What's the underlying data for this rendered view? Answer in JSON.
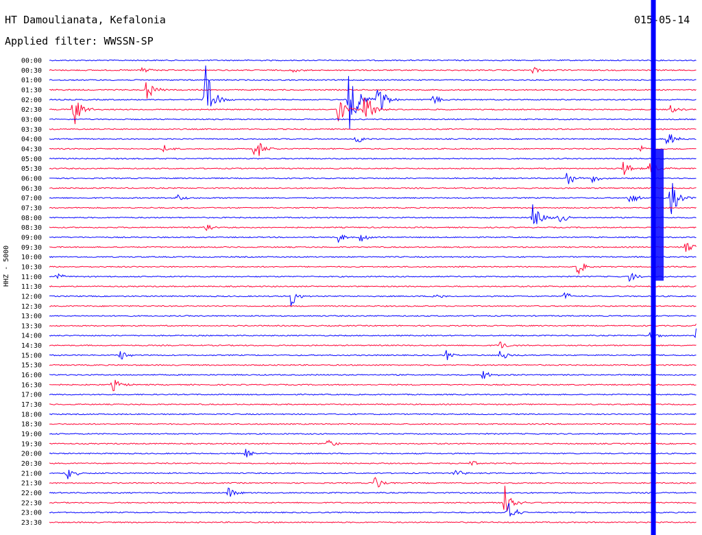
{
  "header": {
    "station": "HT Damoulianata, Kefalonia",
    "filter": "Applied filter: WWSSN-SP",
    "date": "015-05-14"
  },
  "channel_label": "HHZ - 5000",
  "colors": {
    "trace_a": "#0000ff",
    "trace_b": "#ff0033",
    "background": "#ffffff",
    "text": "#000000"
  },
  "chart_data": {
    "type": "line",
    "title": "HT Damoulianata, Kefalonia",
    "subtitle": "Applied filter: WWSSN-SP",
    "ylabel": "HHZ - 5000",
    "xlabel": "",
    "grid": false,
    "legend": "none",
    "trace_duration_minutes": 30,
    "rows": [
      "00:00",
      "00:30",
      "01:00",
      "01:30",
      "02:00",
      "02:30",
      "03:00",
      "03:30",
      "04:00",
      "04:30",
      "05:00",
      "05:30",
      "06:00",
      "06:30",
      "07:00",
      "07:30",
      "08:00",
      "08:30",
      "09:00",
      "09:30",
      "10:00",
      "10:30",
      "11:00",
      "11:30",
      "12:00",
      "12:30",
      "13:00",
      "13:30",
      "14:00",
      "14:30",
      "15:00",
      "15:30",
      "16:00",
      "16:30",
      "17:00",
      "17:30",
      "18:00",
      "18:30",
      "19:00",
      "19:30",
      "20:00",
      "20:30",
      "21:00",
      "21:30",
      "22:00",
      "22:30",
      "23:00",
      "23:30"
    ],
    "events": [
      {
        "row": "00:30",
        "minute": 4.2,
        "amplitude": 8
      },
      {
        "row": "00:30",
        "minute": 11.2,
        "amplitude": 5
      },
      {
        "row": "00:30",
        "minute": 22.4,
        "amplitude": 6
      },
      {
        "row": "01:30",
        "minute": 4.5,
        "amplitude": 16
      },
      {
        "row": "02:00",
        "minute": 7.2,
        "amplitude": 60
      },
      {
        "row": "02:00",
        "minute": 13.9,
        "amplitude": 65
      },
      {
        "row": "02:00",
        "minute": 15.2,
        "amplitude": 30
      },
      {
        "row": "02:00",
        "minute": 17.8,
        "amplitude": 8
      },
      {
        "row": "02:30",
        "minute": 1.1,
        "amplitude": 32
      },
      {
        "row": "02:30",
        "minute": 13.4,
        "amplitude": 25
      },
      {
        "row": "02:30",
        "minute": 14.6,
        "amplitude": 35
      },
      {
        "row": "02:30",
        "minute": 28.8,
        "amplitude": 7
      },
      {
        "row": "04:00",
        "minute": 14.2,
        "amplitude": 8
      },
      {
        "row": "04:00",
        "minute": 28.6,
        "amplitude": 16
      },
      {
        "row": "04:30",
        "minute": 5.3,
        "amplitude": 6
      },
      {
        "row": "04:30",
        "minute": 9.5,
        "amplitude": 22
      },
      {
        "row": "04:30",
        "minute": 27.4,
        "amplitude": 5
      },
      {
        "row": "05:30",
        "minute": 26.6,
        "amplitude": 14
      },
      {
        "row": "05:30",
        "minute": 27.8,
        "amplitude": 12
      },
      {
        "row": "06:00",
        "minute": 24.0,
        "amplitude": 12
      },
      {
        "row": "06:00",
        "minute": 25.2,
        "amplitude": 8
      },
      {
        "row": "07:00",
        "minute": 5.9,
        "amplitude": 8
      },
      {
        "row": "07:00",
        "minute": 26.9,
        "amplitude": 10
      },
      {
        "row": "07:00",
        "minute": 28.8,
        "amplitude": 30
      },
      {
        "row": "08:00",
        "minute": 22.4,
        "amplitude": 28
      },
      {
        "row": "08:00",
        "minute": 23.6,
        "amplitude": 12
      },
      {
        "row": "08:30",
        "minute": 7.2,
        "amplitude": 10
      },
      {
        "row": "09:00",
        "minute": 13.4,
        "amplitude": 8
      },
      {
        "row": "09:00",
        "minute": 14.4,
        "amplitude": 10
      },
      {
        "row": "09:30",
        "minute": 29.5,
        "amplitude": 10
      },
      {
        "row": "10:30",
        "minute": 24.5,
        "amplitude": 14
      },
      {
        "row": "11:00",
        "minute": 0.3,
        "amplitude": 7
      },
      {
        "row": "11:00",
        "minute": 26.9,
        "amplitude": 8
      },
      {
        "row": "12:00",
        "minute": 11.2,
        "amplitude": 16
      },
      {
        "row": "12:00",
        "minute": 17.8,
        "amplitude": 6
      },
      {
        "row": "12:00",
        "minute": 23.9,
        "amplitude": 7
      },
      {
        "row": "13:30",
        "minute": 30.0,
        "amplitude": 8
      },
      {
        "row": "14:00",
        "minute": 27.8,
        "amplitude": 8
      },
      {
        "row": "14:00",
        "minute": 30.0,
        "amplitude": 14
      },
      {
        "row": "14:30",
        "minute": 20.9,
        "amplitude": 8
      },
      {
        "row": "15:00",
        "minute": 3.3,
        "amplitude": 9
      },
      {
        "row": "15:00",
        "minute": 18.4,
        "amplitude": 8
      },
      {
        "row": "15:00",
        "minute": 20.9,
        "amplitude": 10
      },
      {
        "row": "16:00",
        "minute": 20.1,
        "amplitude": 7
      },
      {
        "row": "16:30",
        "minute": 2.9,
        "amplitude": 12
      },
      {
        "row": "19:30",
        "minute": 12.9,
        "amplitude": 9
      },
      {
        "row": "20:00",
        "minute": 9.1,
        "amplitude": 7
      },
      {
        "row": "20:30",
        "minute": 19.5,
        "amplitude": 5
      },
      {
        "row": "21:00",
        "minute": 0.8,
        "amplitude": 12
      },
      {
        "row": "21:00",
        "minute": 18.8,
        "amplitude": 7
      },
      {
        "row": "21:30",
        "minute": 15.1,
        "amplitude": 12
      },
      {
        "row": "22:00",
        "minute": 8.3,
        "amplitude": 8
      },
      {
        "row": "22:30",
        "minute": 21.1,
        "amplitude": 42
      },
      {
        "row": "23:00",
        "minute": 21.2,
        "amplitude": 22
      }
    ],
    "saturated_band": {
      "from_row": "05:00",
      "to_row": "11:00",
      "minute": 28.0
    },
    "clipped_column": {
      "minute": 28.0
    }
  }
}
